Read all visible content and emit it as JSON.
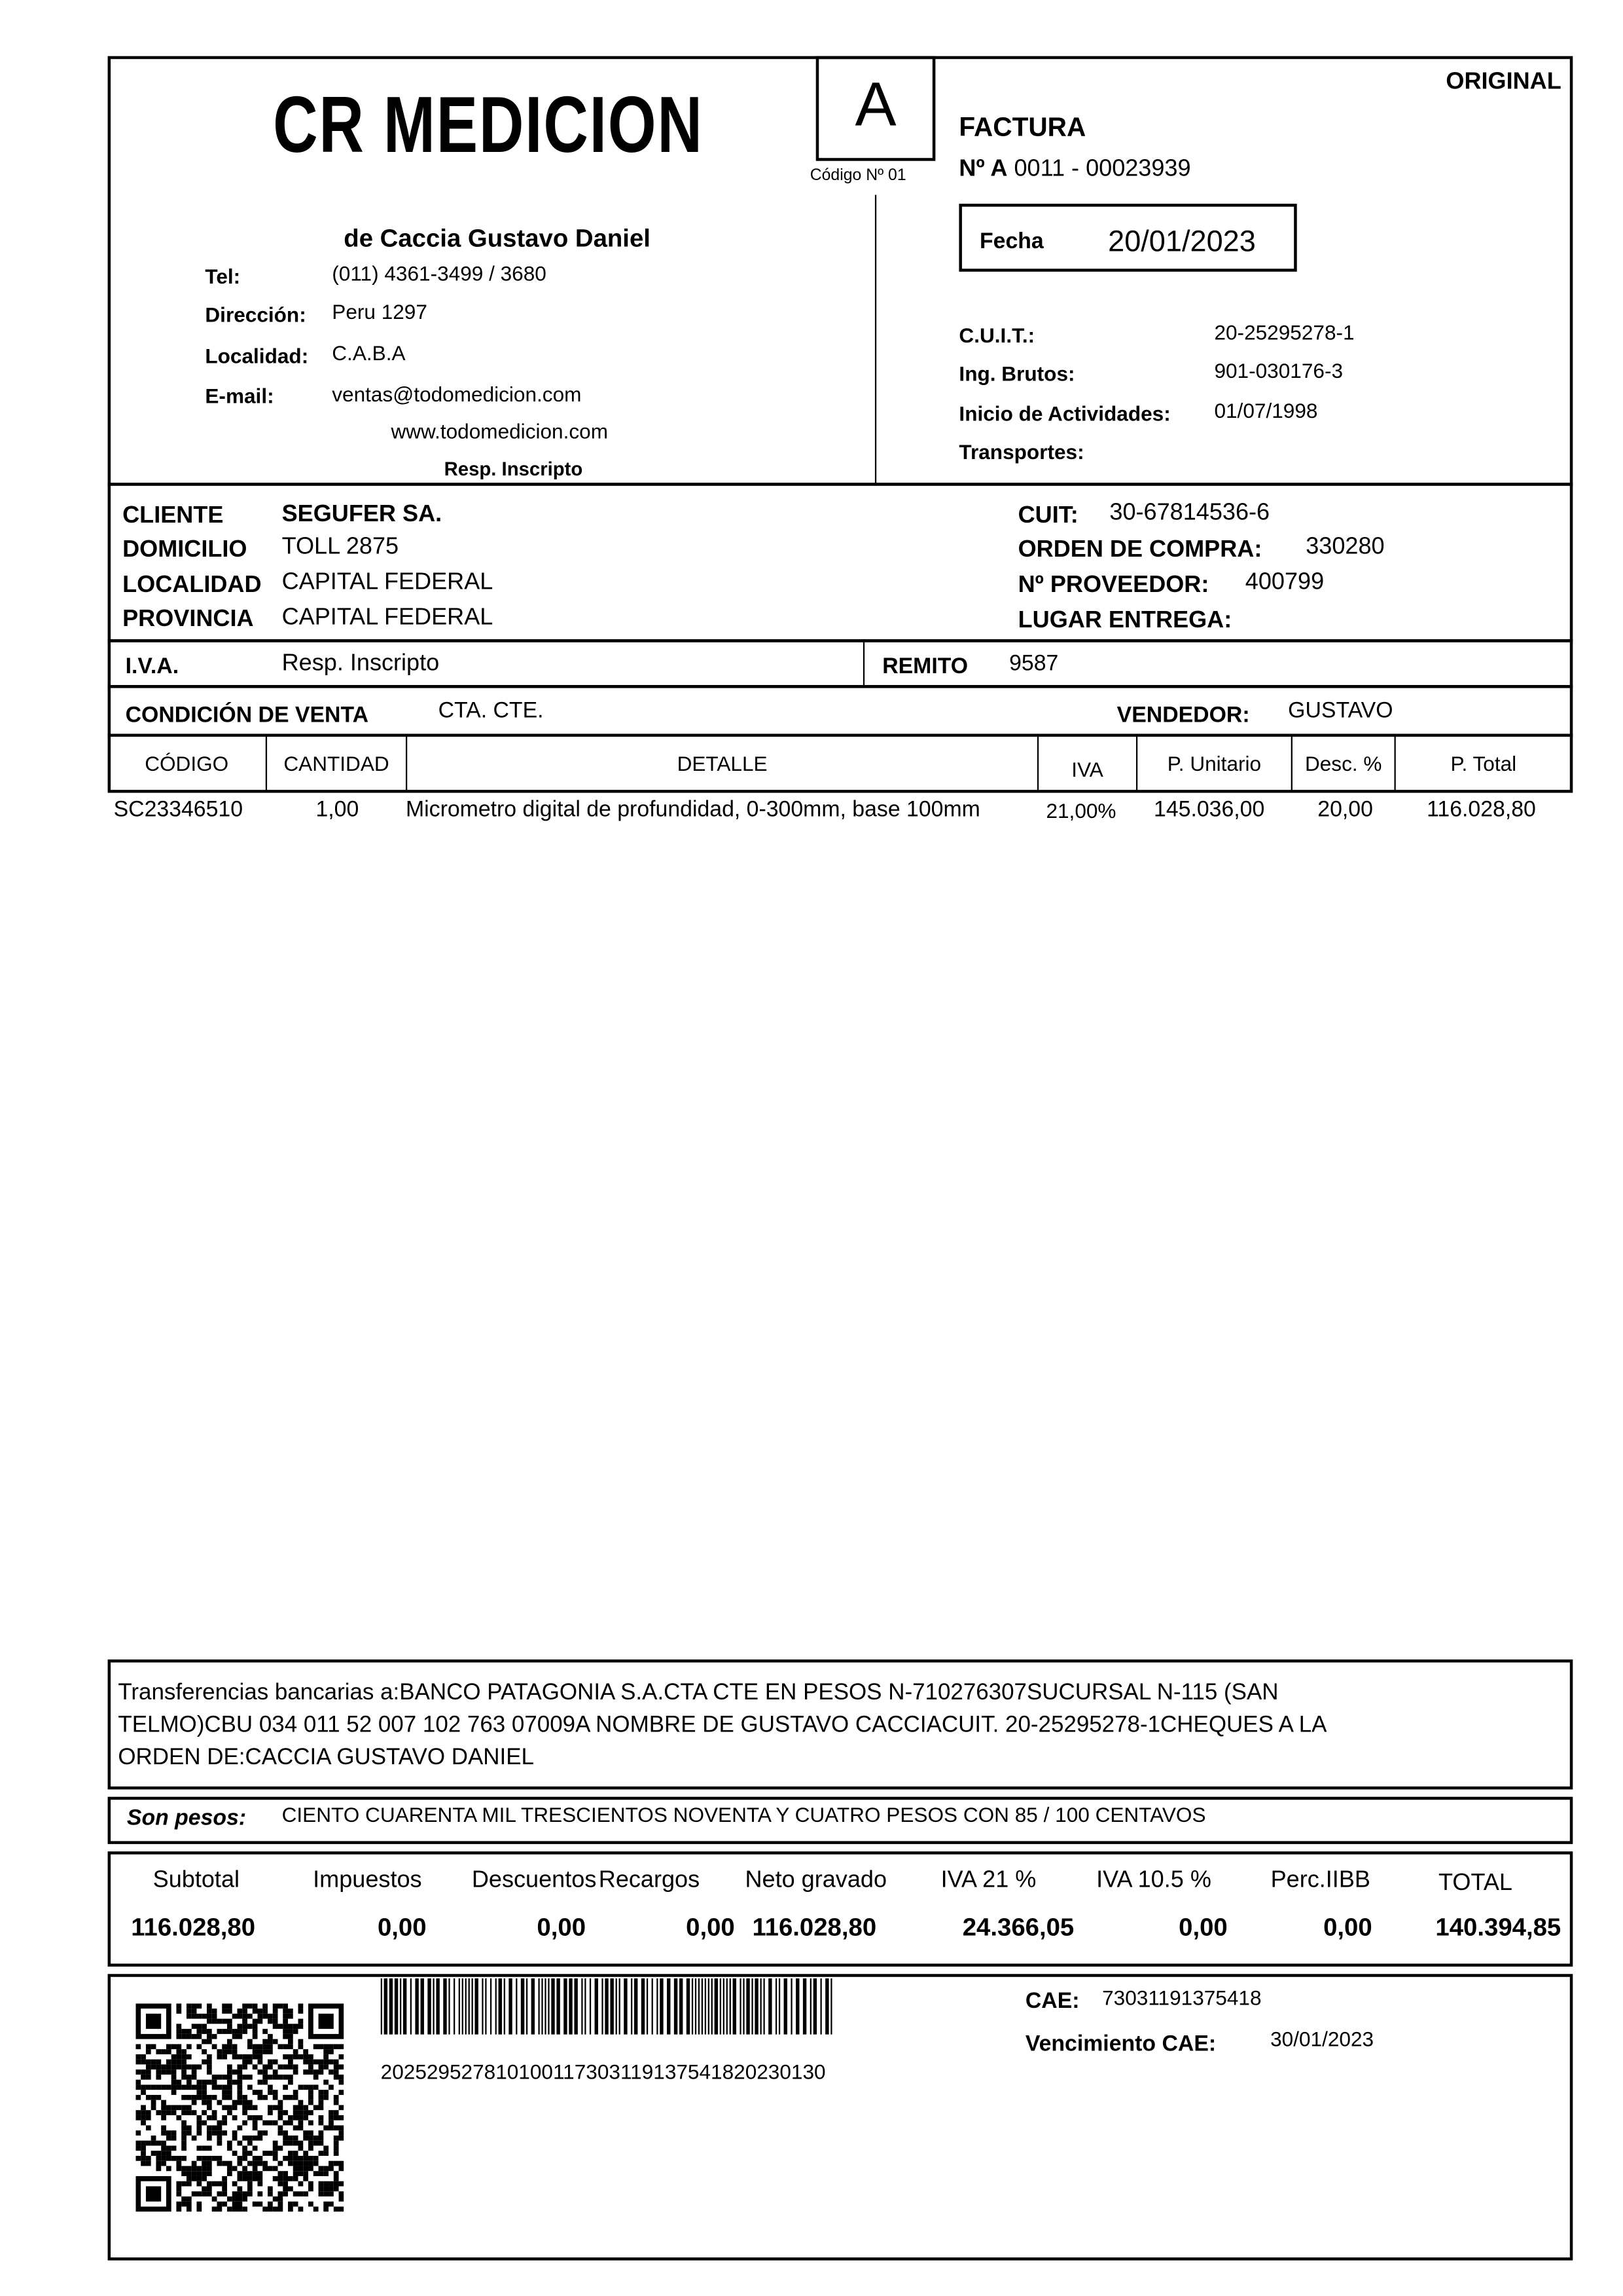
{
  "header": {
    "logo_text": "CR MEDICION",
    "letter": "A",
    "codigo": "Código Nº 01",
    "copy_label": "ORIGINAL",
    "doc_type": "FACTURA",
    "number_prefix": "Nº A",
    "number": "0011 - 00023939",
    "fecha_label": "Fecha",
    "fecha": "20/01/2023"
  },
  "issuer": {
    "name": "de Caccia Gustavo Daniel",
    "tel_label": "Tel:",
    "tel": "(011) 4361-3499 / 3680",
    "direccion_label": "Dirección:",
    "direccion": "Peru 1297",
    "localidad_label": "Localidad:",
    "localidad": "C.A.B.A",
    "email_label": "E-mail:",
    "email": "ventas@todomedicion.com",
    "web": "www.todomedicion.com",
    "iva_cond": "Resp. Inscripto",
    "cuit_label": "C.U.I.T.:",
    "cuit": "20-25295278-1",
    "iibb_label": "Ing. Brutos:",
    "iibb": "901-030176-3",
    "inicio_label": "Inicio de Actividades:",
    "inicio": "01/07/1998",
    "transportes_label": "Transportes:"
  },
  "client": {
    "cliente_label": "CLIENTE",
    "cliente": "SEGUFER SA.",
    "domicilio_label": "DOMICILIO",
    "domicilio": "TOLL 2875",
    "localidad_label": "LOCALIDAD",
    "localidad": "CAPITAL FEDERAL",
    "provincia_label": "PROVINCIA",
    "provincia": "CAPITAL FEDERAL",
    "cuit_label": "CUIT:",
    "cuit": "30-67814536-6",
    "orden_label": "ORDEN DE COMPRA:",
    "orden": "330280",
    "proveedor_label": "Nº PROVEEDOR:",
    "proveedor": "400799",
    "lugar_label": "LUGAR ENTREGA:",
    "iva_label": "I.V.A.",
    "iva": "Resp. Inscripto",
    "remito_label": "REMITO",
    "remito": "9587",
    "condicion_label": "CONDICIÓN DE VENTA",
    "condicion": "CTA. CTE.",
    "vendedor_label": "VENDEDOR:",
    "vendedor": "GUSTAVO"
  },
  "table": {
    "headers": [
      "CÓDIGO",
      "CANTIDAD",
      "DETALLE",
      "IVA",
      "P. Unitario",
      "Desc. %",
      "P. Total"
    ],
    "rows": [
      [
        "SC23346510",
        "1,00",
        "Micrometro digital de profundidad, 0-300mm, base 100mm",
        "21,00%",
        "145.036,00",
        "20,00",
        "116.028,80"
      ]
    ]
  },
  "footer": {
    "transfer_lines": [
      "Transferencias bancarias a:BANCO PATAGONIA S.A.CTA CTE EN PESOS N-710276307SUCURSAL N-115 (SAN",
      "TELMO)CBU  034 011 52 007 102 763 07009A NOMBRE DE GUSTAVO CACCIACUIT. 20-25295278-1CHEQUES A LA",
      "ORDEN DE:CACCIA GUSTAVO DANIEL"
    ],
    "son_pesos_label": "Son pesos:",
    "son_pesos": "CIENTO CUARENTA MIL TRESCIENTOS NOVENTA Y CUATRO PESOS CON 85 / 100 CENTAVOS",
    "totals_labels": [
      "Subtotal",
      "Impuestos",
      "Descuentos",
      "Recargos",
      "Neto gravado",
      "IVA 21 %",
      "IVA 10.5 %",
      "Perc.IIBB",
      "TOTAL"
    ],
    "totals_values": [
      "116.028,80",
      "0,00",
      "0,00",
      "0,00",
      "116.028,80",
      "24.366,05",
      "0,00",
      "0,00",
      "140.394,85"
    ],
    "barcode_number": "20252952781010011730311913754182023013О",
    "cae_label": "CAE:",
    "cae": "73031191375418",
    "vto_label": "Vencimiento CAE:",
    "vto": "30/01/2023"
  }
}
